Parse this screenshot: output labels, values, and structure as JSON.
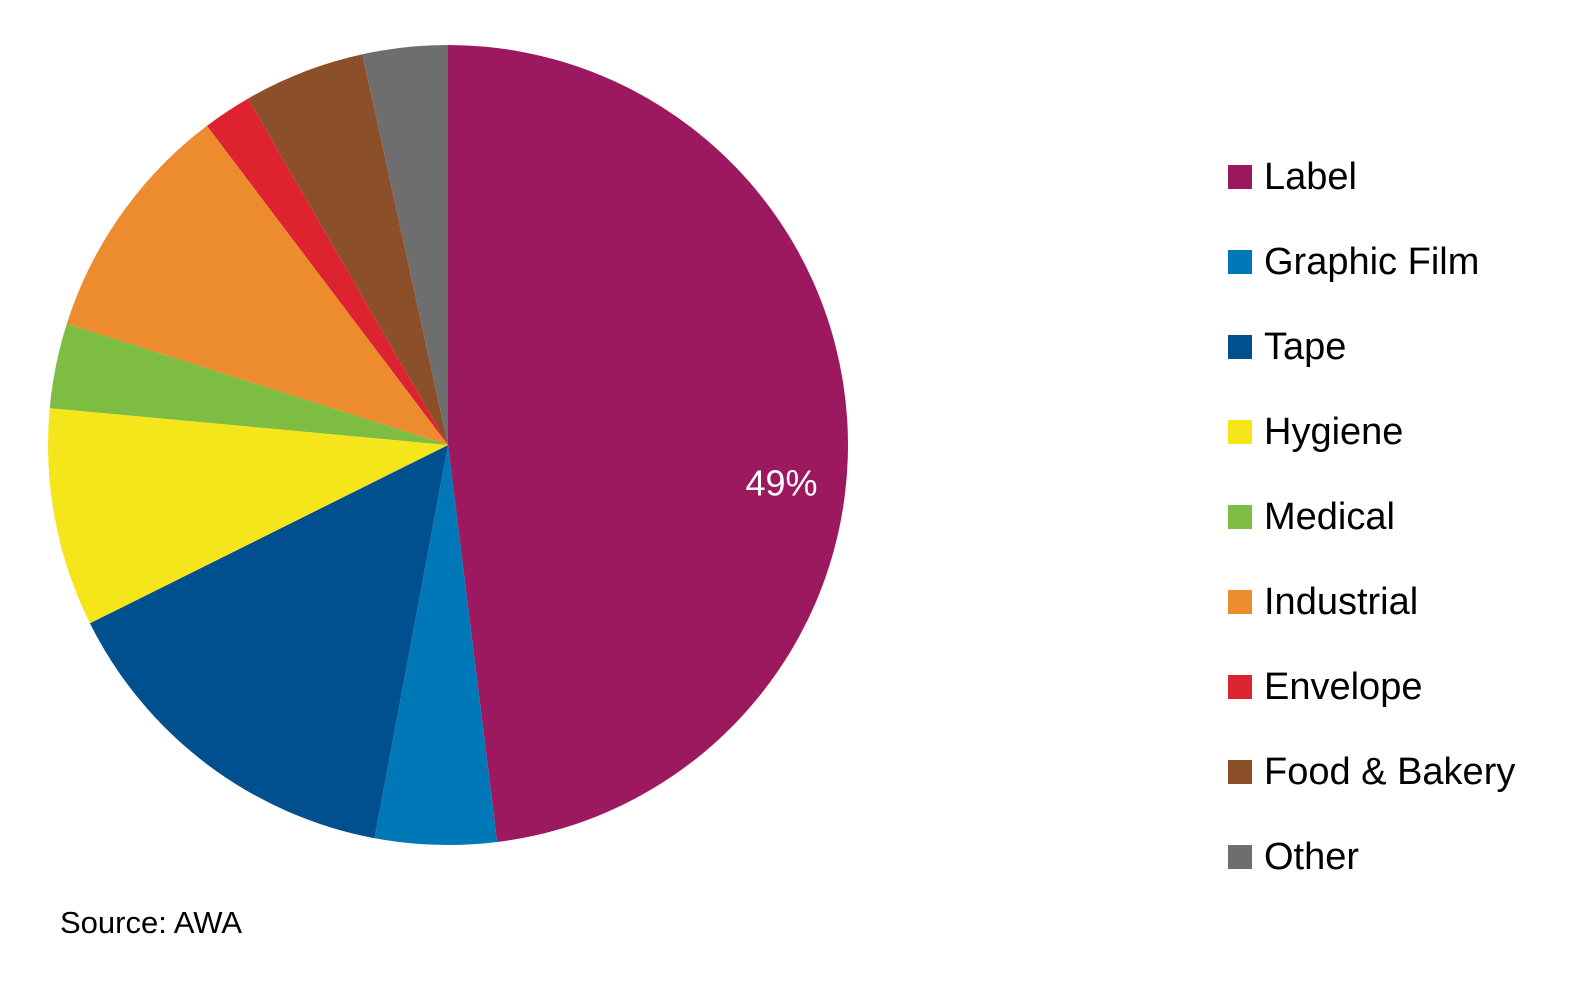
{
  "chart_data": {
    "type": "pie",
    "title": "",
    "start_angle_deg": 0,
    "direction": "clockwise",
    "slices": [
      {
        "label": "Label",
        "value": 49,
        "color": "#9c1960",
        "data_label": "49%"
      },
      {
        "label": "Graphic Film",
        "value": 5,
        "color": "#0077b6"
      },
      {
        "label": "Tape",
        "value": 15,
        "color": "#004f8f"
      },
      {
        "label": "Hygiene",
        "value": 9,
        "color": "#f5e61b"
      },
      {
        "label": "Medical",
        "value": 3.5,
        "color": "#7cbd42"
      },
      {
        "label": "Industrial",
        "value": 10,
        "color": "#ec8c2f"
      },
      {
        "label": "Envelope",
        "value": 2,
        "color": "#dd2230"
      },
      {
        "label": "Food & Bakery",
        "value": 5,
        "color": "#8b4f2a"
      },
      {
        "label": "Other",
        "value": 3.5,
        "color": "#6e6e6e"
      }
    ],
    "legend_position": "right"
  },
  "source_text": "Source: AWA",
  "data_label_color": "#ffffff"
}
